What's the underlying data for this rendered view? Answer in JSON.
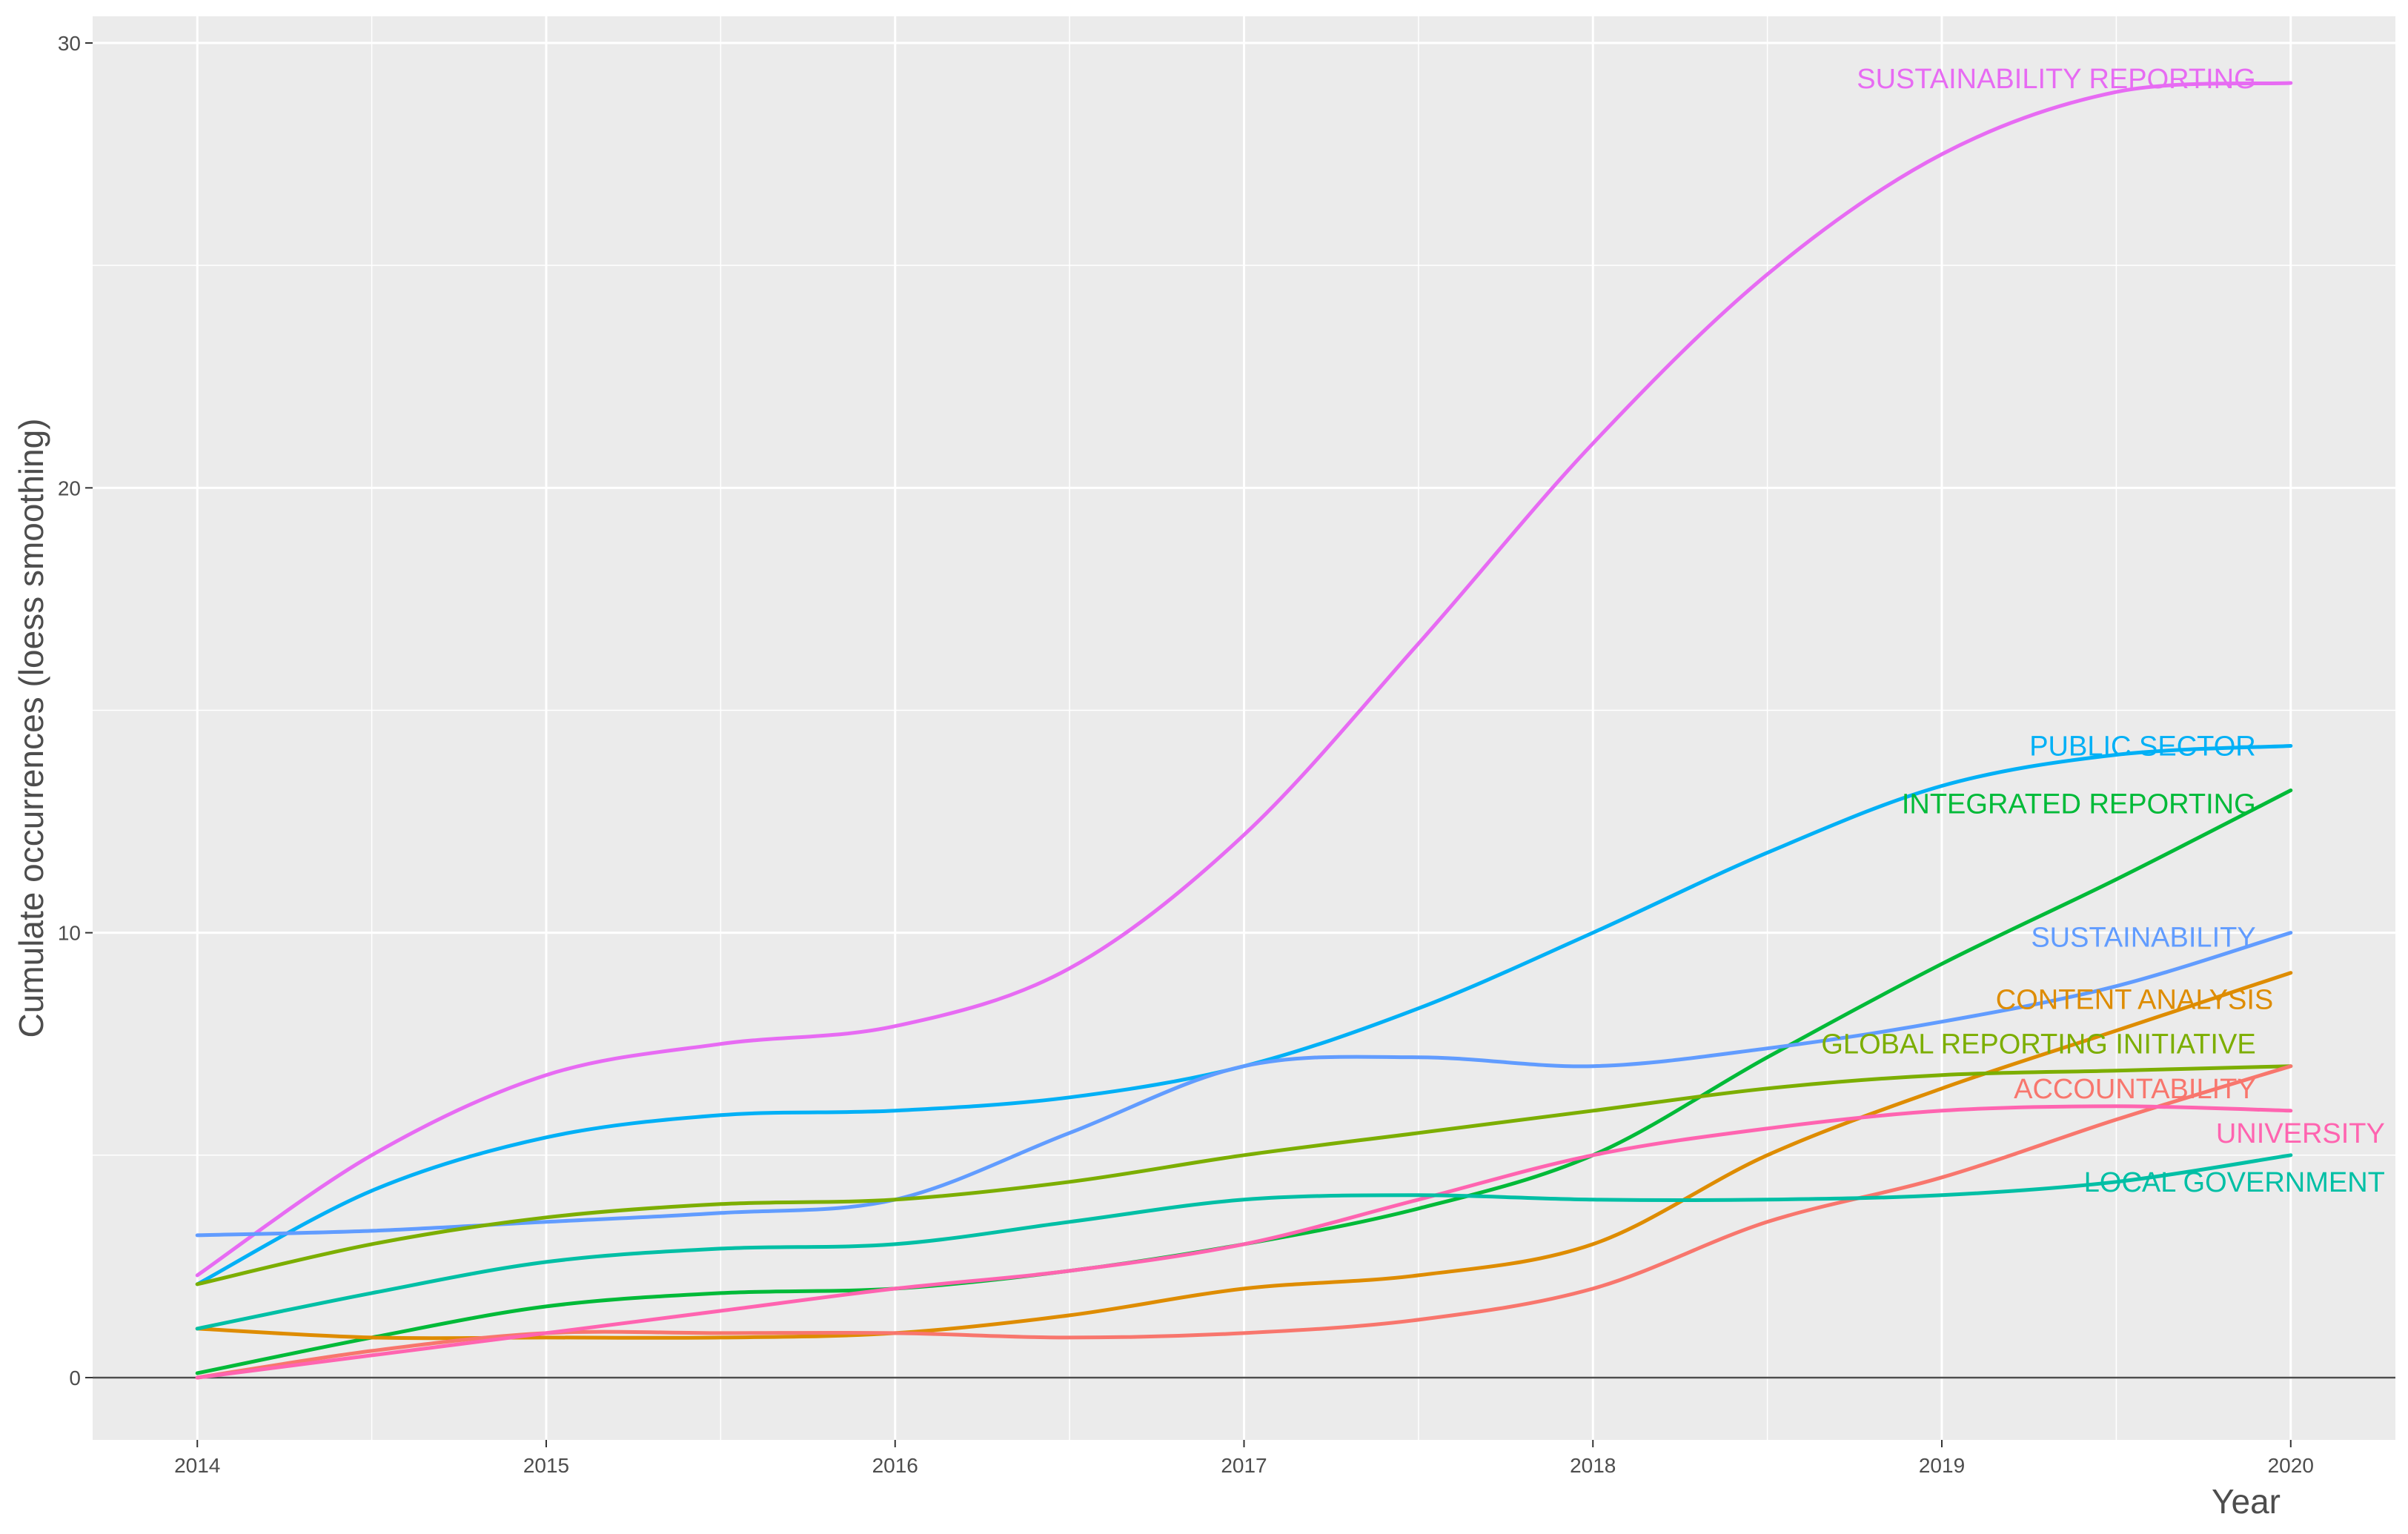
{
  "chart_data": {
    "type": "line",
    "title": "",
    "xlabel": "Year",
    "ylabel": "Cumulate occurrences (loess smoothing)",
    "xlim": [
      2013.7,
      2020.3
    ],
    "ylim": [
      -1.4,
      30.6
    ],
    "x_ticks": [
      2014,
      2015,
      2016,
      2017,
      2018,
      2019,
      2020
    ],
    "x_tick_labels": [
      "2014",
      "2015",
      "2016",
      "2017",
      "2018",
      "2019",
      "2020"
    ],
    "y_ticks": [
      0,
      10,
      20,
      30
    ],
    "y_tick_labels": [
      "0",
      "10",
      "20",
      "30"
    ],
    "grid": true,
    "legend": "none",
    "background": "#ebebeb",
    "x": [
      2014,
      2014.5,
      2015,
      2015.5,
      2016,
      2016.5,
      2017,
      2017.5,
      2018,
      2018.5,
      2019,
      2019.5,
      2020
    ],
    "series": [
      {
        "name": "SUSTAINABILITY REPORTING",
        "color": "#e76bf3",
        "values": [
          2.3,
          5.0,
          6.8,
          7.5,
          7.9,
          9.2,
          12.2,
          16.5,
          21.0,
          24.8,
          27.5,
          28.9,
          29.1
        ],
        "label_anchor_x": 2019.9,
        "label_anchor_y": 29.2
      },
      {
        "name": "PUBLIC SECTOR",
        "color": "#00b0f6",
        "values": [
          2.1,
          4.2,
          5.4,
          5.9,
          6.0,
          6.3,
          7.0,
          8.3,
          10.0,
          11.8,
          13.3,
          14.0,
          14.2
        ],
        "label_anchor_x": 2019.9,
        "label_anchor_y": 14.2
      },
      {
        "name": "INTEGRATED REPORTING",
        "color": "#00ba38",
        "values": [
          0.1,
          0.9,
          1.6,
          1.9,
          2.0,
          2.4,
          3.0,
          3.8,
          5.0,
          7.2,
          9.3,
          11.2,
          13.2
        ],
        "label_anchor_x": 2019.9,
        "label_anchor_y": 12.9
      },
      {
        "name": "SUSTAINABILITY",
        "color": "#619cff",
        "values": [
          3.2,
          3.3,
          3.5,
          3.7,
          4.0,
          5.5,
          7.0,
          7.2,
          7.0,
          7.4,
          8.0,
          8.8,
          10.0
        ],
        "label_anchor_x": 2019.9,
        "label_anchor_y": 9.9
      },
      {
        "name": "CONTENT ANALYSIS",
        "color": "#de8c00",
        "values": [
          1.1,
          0.9,
          0.9,
          0.9,
          1.0,
          1.4,
          2.0,
          2.3,
          3.0,
          5.0,
          6.5,
          7.8,
          9.1
        ],
        "label_anchor_x": 2019.95,
        "label_anchor_y": 8.5
      },
      {
        "name": "GLOBAL REPORTING INITIATIVE",
        "color": "#7cae00",
        "values": [
          2.1,
          3.0,
          3.6,
          3.9,
          4.0,
          4.4,
          5.0,
          5.5,
          6.0,
          6.5,
          6.8,
          6.9,
          7.0
        ],
        "label_anchor_x": 2019.9,
        "label_anchor_y": 7.5
      },
      {
        "name": "ACCOUNTABILITY",
        "color": "#f8766d",
        "values": [
          0.0,
          0.6,
          1.0,
          1.0,
          1.0,
          0.9,
          1.0,
          1.3,
          2.0,
          3.5,
          4.5,
          5.8,
          7.0
        ],
        "label_anchor_x": 2019.9,
        "label_anchor_y": 6.5
      },
      {
        "name": "UNIVERSITY",
        "color": "#ff64b0",
        "values": [
          0.0,
          0.5,
          1.0,
          1.5,
          2.0,
          2.4,
          3.0,
          4.0,
          5.0,
          5.6,
          6.0,
          6.1,
          6.0
        ],
        "label_anchor_x": 2020.27,
        "label_anchor_y": 5.5
      },
      {
        "name": "LOCAL GOVERNMENT",
        "color": "#00bfa5",
        "values": [
          1.1,
          1.9,
          2.6,
          2.9,
          3.0,
          3.5,
          4.0,
          4.1,
          4.0,
          4.0,
          4.1,
          4.4,
          5.0
        ],
        "label_anchor_x": 2020.27,
        "label_anchor_y": 4.4
      }
    ]
  }
}
